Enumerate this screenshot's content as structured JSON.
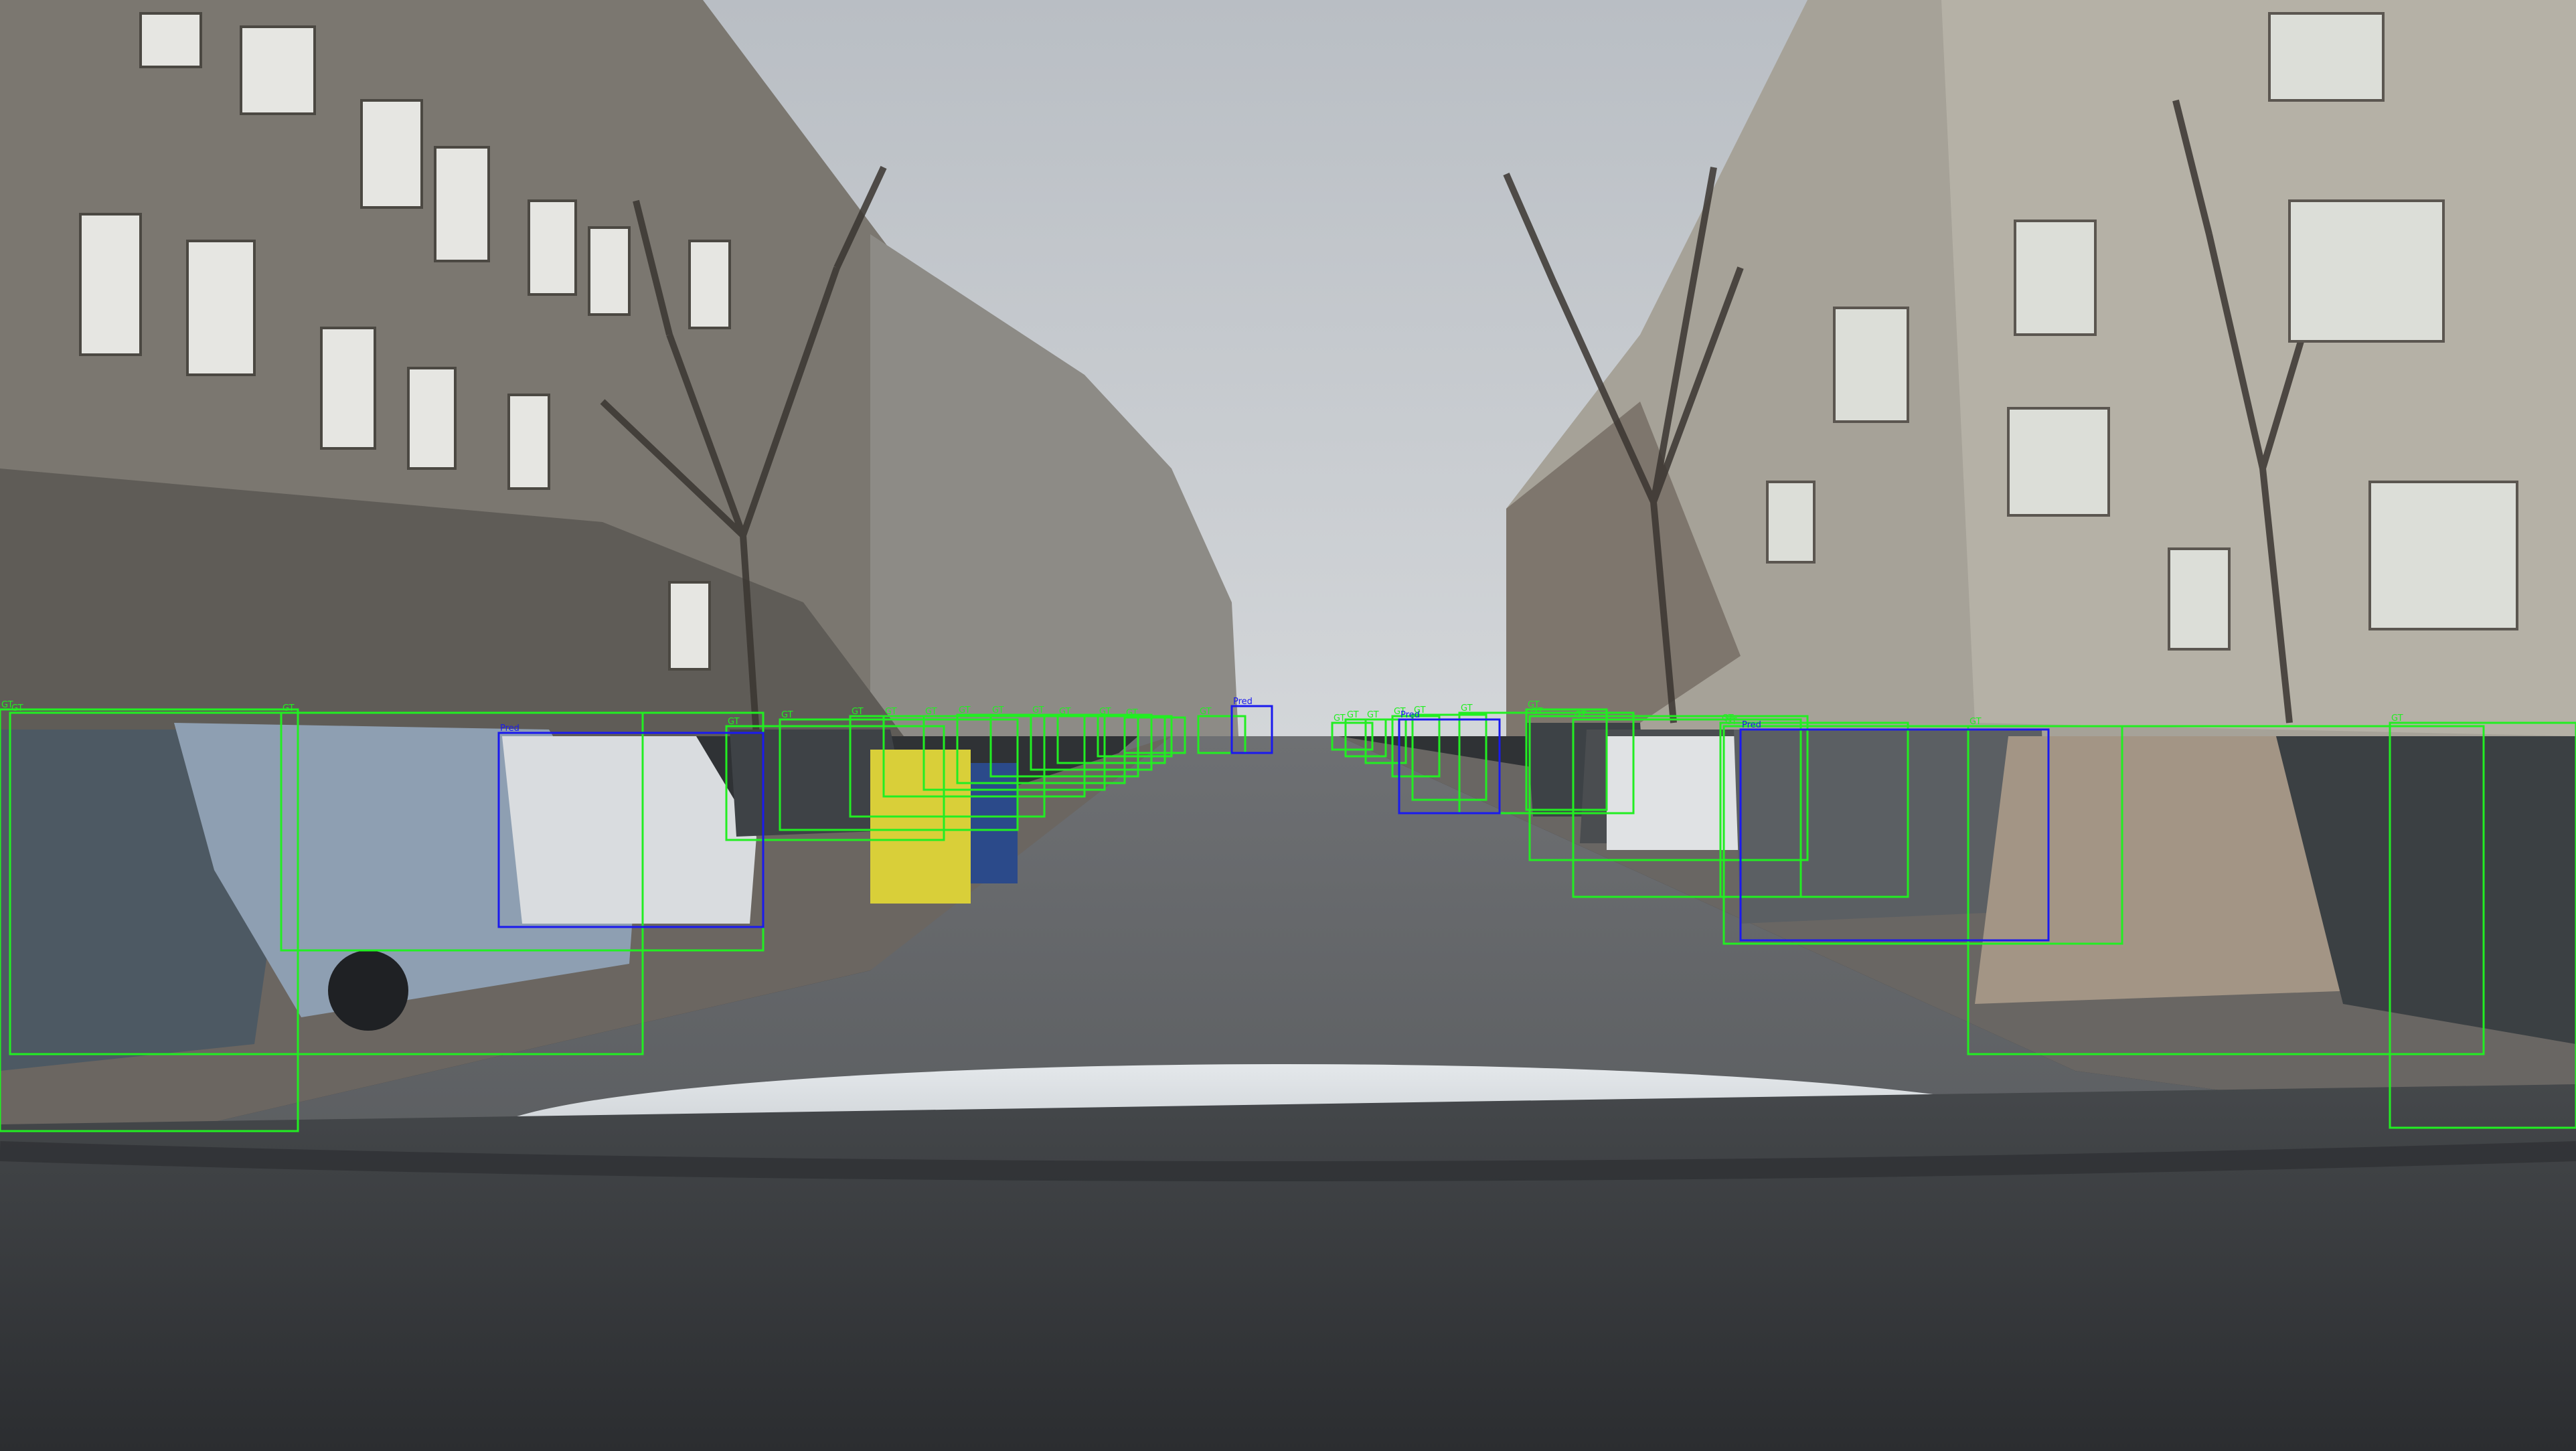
{
  "image": {
    "kind": "dashcam-street-scene",
    "sky_color": "#c6cbd0",
    "road_color": "#5b5e61",
    "hood_color": "#d9dee2",
    "dashboard_color": "#3a3d40"
  },
  "annotations": {
    "legend": {
      "gt_color": "#22ee22",
      "pred_color": "#1a1aee"
    },
    "gt_tag": "GT",
    "pred_tag": "Pred"
  }
}
